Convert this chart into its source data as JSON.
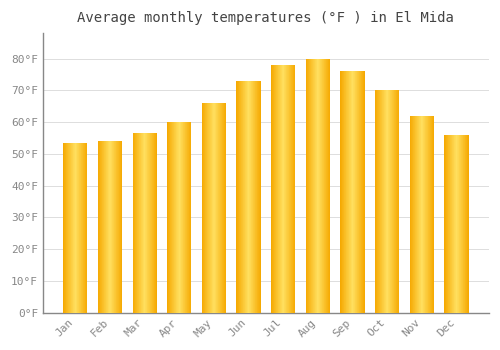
{
  "title": "Average monthly temperatures (°F ) in El Mida",
  "months": [
    "Jan",
    "Feb",
    "Mar",
    "Apr",
    "May",
    "Jun",
    "Jul",
    "Aug",
    "Sep",
    "Oct",
    "Nov",
    "Dec"
  ],
  "values": [
    53.5,
    54.0,
    56.5,
    60.0,
    66.0,
    73.0,
    78.0,
    80.0,
    76.0,
    70.0,
    62.0,
    56.0
  ],
  "bar_color_edge": "#F5A800",
  "bar_color_center": "#FFE060",
  "background_color": "#FFFFFF",
  "plot_bg_color": "#FFFFFF",
  "grid_color": "#DDDDDD",
  "spine_color": "#888888",
  "text_color": "#888888",
  "title_color": "#444444",
  "ylim": [
    0,
    88
  ],
  "yticks": [
    0,
    10,
    20,
    30,
    40,
    50,
    60,
    70,
    80
  ],
  "title_fontsize": 10,
  "tick_fontsize": 8,
  "bar_width": 0.7,
  "n_grad": 60
}
